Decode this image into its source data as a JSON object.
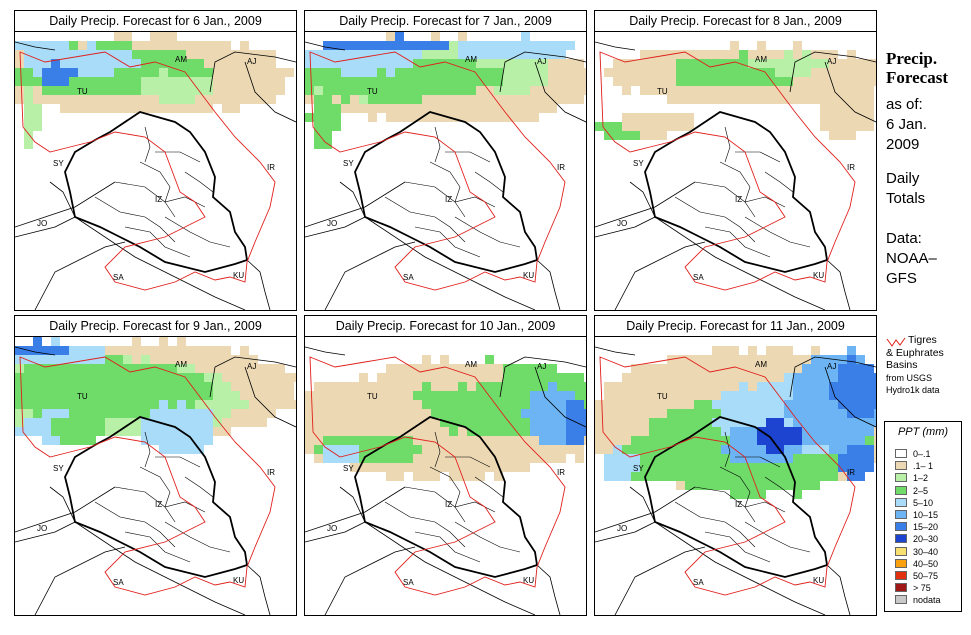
{
  "panels": [
    {
      "title": "Daily Precip. Forecast for  6 Jan., 2009",
      "day": 0
    },
    {
      "title": "Daily Precip. Forecast for  7 Jan., 2009",
      "day": 1
    },
    {
      "title": "Daily Precip. Forecast for  8 Jan., 2009",
      "day": 2
    },
    {
      "title": "Daily Precip. Forecast for  9 Jan., 2009",
      "day": 3
    },
    {
      "title": "Daily Precip. Forecast for  10 Jan., 2009",
      "day": 4
    },
    {
      "title": "Daily Precip. Forecast for  11 Jan., 2009",
      "day": 5
    }
  ],
  "map_labels": [
    "AM",
    "AJ",
    "TU",
    "SY",
    "IR",
    "JO",
    "IZ",
    "SA",
    "KU"
  ],
  "sidebar": {
    "title_line1": "Precip.",
    "title_line2": "Forecast",
    "asof": "as of:",
    "date_line1": "6 Jan.",
    "date_line2": "2009",
    "daily_line1": "Daily",
    "daily_line2": "Totals",
    "data_line1": "Data:",
    "data_line2": "NOAA–",
    "data_line3": "GFS"
  },
  "basin_note": {
    "line1": "Tigres",
    "line2": "& Euphrates",
    "line3": "Basins",
    "line4": "from USGS",
    "line5": "Hydro1k data",
    "line_color": "#e0201c"
  },
  "legend": {
    "title": "PPT (mm)",
    "items": [
      {
        "label": "0–.1",
        "color": "#ffffff"
      },
      {
        "label": ".1– 1",
        "color": "#ecd9b4"
      },
      {
        "label": "1–2",
        "color": "#b8f0a8"
      },
      {
        "label": "2–5",
        "color": "#6fdc6a"
      },
      {
        "label": "5–10",
        "color": "#a8dcf8"
      },
      {
        "label": "10–15",
        "color": "#6cb4f4"
      },
      {
        "label": "15–20",
        "color": "#3a7ee8"
      },
      {
        "label": "20–30",
        "color": "#1c44d0"
      },
      {
        "label": "30–40",
        "color": "#f8e070"
      },
      {
        "label": "40–50",
        "color": "#f8a010"
      },
      {
        "label": "50–75",
        "color": "#e03010"
      },
      {
        "label": "> 75",
        "color": "#a01818"
      },
      {
        "label": "nodata",
        "color": "#c8c8c8"
      }
    ]
  }
}
